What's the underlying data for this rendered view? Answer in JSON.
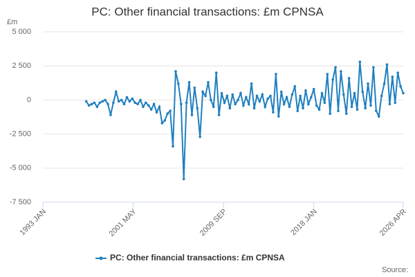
{
  "chart_data": {
    "type": "line",
    "title": "PC: Other financial transactions: £m CPNSA",
    "y_label": "£m",
    "source": "Source:",
    "grid": true,
    "legend": "bottom",
    "xlim": [
      "1993 JAN",
      "2026 APR"
    ],
    "xticks": [
      "1993 JAN",
      "2001 MAY",
      "2009 SEP",
      "2018 JAN",
      "2026 APR"
    ],
    "ylim": [
      -7500,
      5000
    ],
    "yticks": [
      {
        "value": 5000,
        "label": "5 000"
      },
      {
        "value": 2500,
        "label": "2 500"
      },
      0,
      {
        "value": -2500,
        "label": "-2 500"
      },
      {
        "value": -5000,
        "label": "-5 000"
      },
      {
        "value": -7500,
        "label": "-7 500"
      }
    ],
    "x": [
      "1997 JAN",
      "1997 APR",
      "1997 JUL",
      "1997 OCT",
      "1998 JAN",
      "1998 APR",
      "1998 JUL",
      "1998 OCT",
      "1999 JAN",
      "1999 APR",
      "1999 JUL",
      "1999 OCT",
      "2000 JAN",
      "2000 APR",
      "2000 JUL",
      "2000 OCT",
      "2001 JAN",
      "2001 APR",
      "2001 JUL",
      "2001 OCT",
      "2002 JAN",
      "2002 APR",
      "2002 JUL",
      "2002 OCT",
      "2003 JAN",
      "2003 APR",
      "2003 JUL",
      "2003 OCT",
      "2004 JAN",
      "2004 APR",
      "2004 JUL",
      "2004 OCT",
      "2005 JAN",
      "2005 APR",
      "2005 JUL",
      "2005 OCT",
      "2006 JAN",
      "2006 APR",
      "2006 JUL",
      "2006 OCT",
      "2007 JAN",
      "2007 APR",
      "2007 JUL",
      "2007 OCT",
      "2008 JAN",
      "2008 APR",
      "2008 JUL",
      "2008 OCT",
      "2009 JAN",
      "2009 APR",
      "2009 JUL",
      "2009 OCT",
      "2010 JAN",
      "2010 APR",
      "2010 JUL",
      "2010 OCT",
      "2011 JAN",
      "2011 APR",
      "2011 JUL",
      "2011 OCT",
      "2012 JAN",
      "2012 APR",
      "2012 JUL",
      "2012 OCT",
      "2013 JAN",
      "2013 APR",
      "2013 JUL",
      "2013 OCT",
      "2014 JAN",
      "2014 APR",
      "2014 JUL",
      "2014 OCT",
      "2015 JAN",
      "2015 APR",
      "2015 JUL",
      "2015 OCT",
      "2016 JAN",
      "2016 APR",
      "2016 JUL",
      "2016 OCT",
      "2017 JAN",
      "2017 APR",
      "2017 JUL",
      "2017 OCT",
      "2018 JAN",
      "2018 APR",
      "2018 JUL",
      "2018 OCT",
      "2019 JAN",
      "2019 APR",
      "2019 JUL",
      "2019 OCT",
      "2020 JAN",
      "2020 APR",
      "2020 JUL",
      "2020 OCT",
      "2021 JAN",
      "2021 APR",
      "2021 JUL",
      "2021 OCT",
      "2022 JAN",
      "2022 APR",
      "2022 JUL",
      "2022 OCT",
      "2023 JAN",
      "2023 APR",
      "2023 JUL",
      "2023 OCT",
      "2024 JAN",
      "2024 APR",
      "2024 JUL",
      "2024 OCT",
      "2025 JAN",
      "2025 APR",
      "2025 JUL",
      "2025 OCT",
      "2026 JAN",
      "2026 APR"
    ],
    "series": [
      {
        "name": "PC: Other financial transactions: £m CPNSA",
        "color": "#1f7fbf",
        "values": [
          -100,
          -400,
          -300,
          -200,
          -500,
          -200,
          -100,
          0,
          -300,
          -1100,
          -200,
          600,
          -100,
          0,
          -300,
          200,
          -100,
          100,
          -200,
          -300,
          0,
          -500,
          -200,
          -400,
          -700,
          -300,
          -900,
          -500,
          -1700,
          -1500,
          -1000,
          -800,
          -3400,
          2100,
          1200,
          -300,
          -5800,
          -200,
          1300,
          -1100,
          900,
          -600,
          -2700,
          600,
          300,
          1300,
          0,
          -500,
          2000,
          -1100,
          500,
          -200,
          300,
          -600,
          400,
          -300,
          0,
          500,
          -400,
          200,
          -300,
          1200,
          -600,
          300,
          -100,
          400,
          -500,
          100,
          300,
          -900,
          1900,
          -1200,
          600,
          -300,
          200,
          -500,
          400,
          1000,
          -800,
          300,
          -600,
          700,
          -300,
          200,
          800,
          -400,
          -700,
          500,
          -200,
          1900,
          -1000,
          1500,
          2400,
          -800,
          2100,
          400,
          -1000,
          1600,
          -500,
          500,
          -700,
          2800,
          600,
          -600,
          1200,
          -400,
          2400,
          -800,
          -1200,
          300,
          1200,
          2600,
          -300,
          1700,
          -200,
          2000,
          1000,
          500
        ]
      }
    ]
  }
}
